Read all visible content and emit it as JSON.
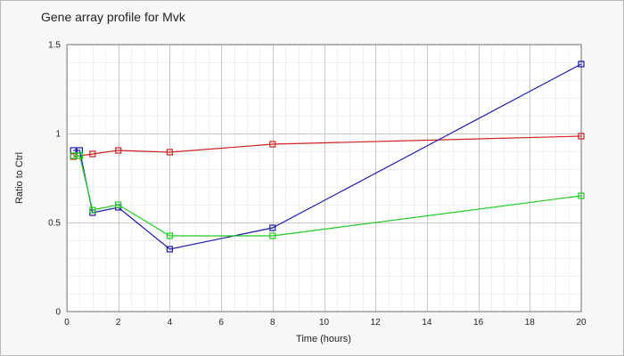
{
  "chart_data": {
    "type": "line",
    "title": "Gene array profile for Mvk",
    "xlabel": "Time (hours)",
    "ylabel": "Ratio to Ctrl",
    "xlim": [
      0,
      20
    ],
    "ylim": [
      0,
      1.5
    ],
    "xticks": [
      0,
      2,
      4,
      6,
      8,
      10,
      12,
      14,
      16,
      18,
      20
    ],
    "yticks": [
      0,
      0.5,
      1,
      1.5
    ],
    "ytick_labels": [
      "0",
      "0.5",
      "1",
      "1.5"
    ],
    "grid": true,
    "legend": "none",
    "series": [
      {
        "color": "#cc2222",
        "points": [
          [
            0.25,
            0.87
          ],
          [
            0.5,
            0.875
          ],
          [
            1,
            0.885
          ],
          [
            2,
            0.905
          ],
          [
            4,
            0.895
          ],
          [
            8,
            0.94
          ],
          [
            20,
            0.985
          ]
        ]
      },
      {
        "color": "#1a1aaa",
        "points": [
          [
            0.25,
            0.905
          ],
          [
            0.5,
            0.905
          ],
          [
            1,
            0.555
          ],
          [
            2,
            0.585
          ],
          [
            4,
            0.35
          ],
          [
            8,
            0.47
          ],
          [
            20,
            1.39
          ]
        ]
      },
      {
        "color": "#22cc22",
        "points": [
          [
            0.25,
            0.875
          ],
          [
            0.5,
            0.875
          ],
          [
            1,
            0.57
          ],
          [
            2,
            0.6
          ],
          [
            4,
            0.425
          ],
          [
            8,
            0.425
          ],
          [
            20,
            0.65
          ]
        ]
      }
    ]
  }
}
